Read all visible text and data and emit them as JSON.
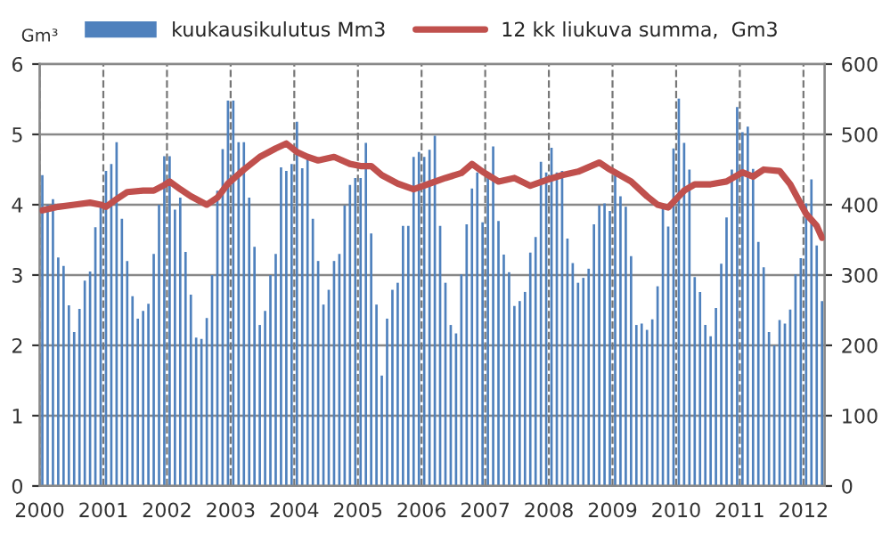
{
  "chart_data": {
    "type": "bar",
    "ylabel": "Gm³",
    "legend": "top",
    "grid": true,
    "xlim": [
      "2000-01",
      "2012-05"
    ],
    "xticks": [
      {
        "value": "2000",
        "label": "2000"
      },
      {
        "value": "2001",
        "label": "2001"
      },
      {
        "value": "2002",
        "label": "2002"
      },
      {
        "value": "2003",
        "label": "2003"
      },
      {
        "value": "2004",
        "label": "2004"
      },
      {
        "value": "2005",
        "label": "2005"
      },
      {
        "value": "2006",
        "label": "2006"
      },
      {
        "value": "2007",
        "label": "2007"
      },
      {
        "value": "2008",
        "label": "2008"
      },
      {
        "value": "2009",
        "label": "2009"
      },
      {
        "value": "2010",
        "label": "2010"
      },
      {
        "value": "2011",
        "label": "2011"
      },
      {
        "value": "2012",
        "label": "2012"
      }
    ],
    "ylim": [
      0,
      6
    ],
    "yticks": [
      0,
      1,
      2,
      3,
      4,
      5,
      6
    ],
    "y2lim": [
      0,
      600
    ],
    "y2ticks": [
      0,
      100,
      200,
      300,
      400,
      500,
      600
    ],
    "x": [
      "2000-01",
      "2000-02",
      "2000-03",
      "2000-04",
      "2000-05",
      "2000-06",
      "2000-07",
      "2000-08",
      "2000-09",
      "2000-10",
      "2000-11",
      "2000-12",
      "2001-01",
      "2001-02",
      "2001-03",
      "2001-04",
      "2001-05",
      "2001-06",
      "2001-07",
      "2001-08",
      "2001-09",
      "2001-10",
      "2001-11",
      "2001-12",
      "2002-01",
      "2002-02",
      "2002-03",
      "2002-04",
      "2002-05",
      "2002-06",
      "2002-07",
      "2002-08",
      "2002-09",
      "2002-10",
      "2002-11",
      "2002-12",
      "2003-01",
      "2003-02",
      "2003-03",
      "2003-04",
      "2003-05",
      "2003-06",
      "2003-07",
      "2003-08",
      "2003-09",
      "2003-10",
      "2003-11",
      "2003-12",
      "2004-01",
      "2004-02",
      "2004-03",
      "2004-04",
      "2004-05",
      "2004-06",
      "2004-07",
      "2004-08",
      "2004-09",
      "2004-10",
      "2004-11",
      "2004-12",
      "2005-01",
      "2005-02",
      "2005-03",
      "2005-04",
      "2005-05",
      "2005-06",
      "2005-07",
      "2005-08",
      "2005-09",
      "2005-10",
      "2005-11",
      "2005-12",
      "2006-01",
      "2006-02",
      "2006-03",
      "2006-04",
      "2006-05",
      "2006-06",
      "2006-07",
      "2006-08",
      "2006-09",
      "2006-10",
      "2006-11",
      "2006-12",
      "2007-01",
      "2007-02",
      "2007-03",
      "2007-04",
      "2007-05",
      "2007-06",
      "2007-07",
      "2007-08",
      "2007-09",
      "2007-10",
      "2007-11",
      "2007-12",
      "2008-01",
      "2008-02",
      "2008-03",
      "2008-04",
      "2008-05",
      "2008-06",
      "2008-07",
      "2008-08",
      "2008-09",
      "2008-10",
      "2008-11",
      "2008-12",
      "2009-01",
      "2009-02",
      "2009-03",
      "2009-04",
      "2009-05",
      "2009-06",
      "2009-07",
      "2009-08",
      "2009-09",
      "2009-10",
      "2009-11",
      "2009-12",
      "2010-01",
      "2010-02",
      "2010-03",
      "2010-04",
      "2010-05",
      "2010-06",
      "2010-07",
      "2010-08",
      "2010-09",
      "2010-10",
      "2010-11",
      "2010-12",
      "2011-01",
      "2011-02",
      "2011-03",
      "2011-04",
      "2011-05",
      "2011-06",
      "2011-07",
      "2011-08",
      "2011-09",
      "2011-10",
      "2011-11",
      "2011-12",
      "2012-01",
      "2012-02",
      "2012-03",
      "2012-04"
    ],
    "series": [
      {
        "name": "kuukausikulutus Mm3",
        "axis": "y2",
        "color": "#4f81bd",
        "values": [
          442,
          400,
          408,
          325,
          313,
          257,
          219,
          252,
          292,
          305,
          368,
          400,
          448,
          458,
          489,
          380,
          320,
          270,
          238,
          249,
          259,
          330,
          400,
          469,
          469,
          393,
          410,
          333,
          272,
          211,
          209,
          239,
          300,
          420,
          479,
          548,
          548,
          489,
          489,
          410,
          340,
          229,
          249,
          300,
          330,
          453,
          448,
          458,
          518,
          452,
          465,
          380,
          320,
          258,
          279,
          320,
          330,
          399,
          428,
          438,
          438,
          488,
          359,
          258,
          157,
          238,
          279,
          289,
          370,
          370,
          468,
          475,
          468,
          478,
          498,
          370,
          289,
          229,
          217,
          301,
          372,
          423,
          446,
          375,
          446,
          483,
          377,
          329,
          304,
          256,
          263,
          276,
          332,
          354,
          461,
          446,
          481,
          446,
          448,
          352,
          317,
          289,
          296,
          309,
          372,
          399,
          402,
          391,
          443,
          412,
          397,
          327,
          229,
          231,
          222,
          237,
          284,
          397,
          369,
          480,
          551,
          488,
          450,
          297,
          276,
          229,
          213,
          253,
          316,
          382,
          450,
          539,
          503,
          511,
          451,
          347,
          311,
          219,
          200,
          236,
          231,
          251,
          301,
          324,
          402,
          436,
          342,
          263
        ]
      },
      {
        "name": "12 kk liukuva summa,  Gm3",
        "type": "line",
        "color": "#c0504d",
        "x": [
          "2000-01",
          "2000-04",
          "2000-07",
          "2000-10",
          "2000-12",
          "2001-01",
          "2001-03",
          "2001-05",
          "2001-08",
          "2001-10",
          "2001-12",
          "2002-01",
          "2002-03",
          "2002-05",
          "2002-08",
          "2002-10",
          "2002-12",
          "2003-03",
          "2003-06",
          "2003-09",
          "2003-11",
          "2004-01",
          "2004-03",
          "2004-05",
          "2004-08",
          "2004-11",
          "2005-01",
          "2005-03",
          "2005-05",
          "2005-08",
          "2005-11",
          "2006-02",
          "2006-05",
          "2006-08",
          "2006-10",
          "2006-12",
          "2007-03",
          "2007-06",
          "2007-09",
          "2007-12",
          "2008-03",
          "2008-06",
          "2008-10",
          "2008-12",
          "2009-04",
          "2009-07",
          "2009-09",
          "2009-11",
          "2010-02",
          "2010-04",
          "2010-07",
          "2010-10",
          "2011-01",
          "2011-03",
          "2011-05",
          "2011-08",
          "2011-10",
          "2012-01",
          "2012-03",
          "2012-04"
        ],
        "values": [
          3.92,
          3.97,
          4.0,
          4.03,
          4.0,
          3.97,
          4.08,
          4.18,
          4.2,
          4.2,
          4.28,
          4.33,
          4.22,
          4.12,
          4.0,
          4.1,
          4.3,
          4.5,
          4.68,
          4.8,
          4.87,
          4.75,
          4.68,
          4.63,
          4.68,
          4.58,
          4.55,
          4.55,
          4.42,
          4.3,
          4.22,
          4.3,
          4.38,
          4.45,
          4.58,
          4.47,
          4.33,
          4.38,
          4.27,
          4.35,
          4.42,
          4.47,
          4.6,
          4.5,
          4.33,
          4.12,
          4.0,
          3.96,
          4.2,
          4.29,
          4.29,
          4.33,
          4.46,
          4.4,
          4.5,
          4.48,
          4.29,
          3.87,
          3.7,
          3.53
        ]
      }
    ]
  }
}
